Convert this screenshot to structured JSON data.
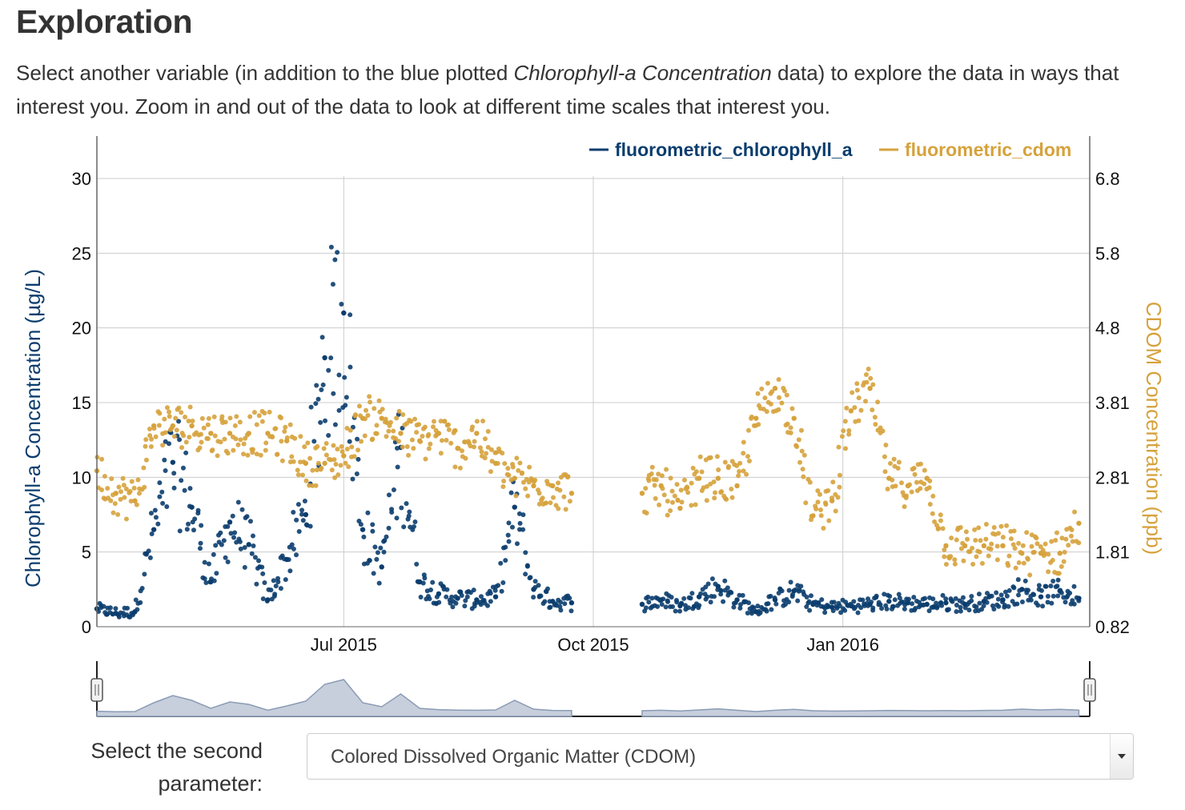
{
  "page": {
    "title": "Exploration",
    "intro_before": "Select another variable (in addition to the blue plotted ",
    "intro_emph": "Chlorophyll-a Concentration",
    "intro_after": " data) to explore the data in ways that interest you. Zoom in and out of the data to look at different time scales that interest you."
  },
  "colors": {
    "chlorophyll": "#0b3d6e",
    "cdom": "#d6a23c",
    "grid": "#cccccc",
    "navigator": "#8a9bb5"
  },
  "chart_data": {
    "type": "scatter",
    "legend_position": "top-right",
    "grid": true,
    "x_range": [
      "2015-04-01",
      "2016-04-01"
    ],
    "x_ticks": [
      "Jul 2015",
      "Oct 2015",
      "Jan 2016"
    ],
    "y_left": {
      "label": "Chlorophyll-a Concentration (µg/L)",
      "ticks": [
        "0",
        "5",
        "10",
        "15",
        "20",
        "25",
        "30"
      ],
      "range": [
        0,
        30
      ]
    },
    "y_right": {
      "label": "CDOM Concentration (ppb)",
      "ticks": [
        "0.82",
        "1.81",
        "2.81",
        "3.81",
        "4.8",
        "5.8",
        "6.8"
      ],
      "range": [
        0.82,
        6.8
      ]
    },
    "data_gap": [
      "2015-09-28",
      "2015-10-19"
    ],
    "series": [
      {
        "name": "fluorometric_chlorophyll_a",
        "axis": "left",
        "x": [
          "2015-04-01",
          "2015-04-08",
          "2015-04-15",
          "2015-04-22",
          "2015-04-29",
          "2015-05-06",
          "2015-05-13",
          "2015-05-20",
          "2015-05-27",
          "2015-06-03",
          "2015-06-10",
          "2015-06-17",
          "2015-06-24",
          "2015-07-01",
          "2015-07-08",
          "2015-07-15",
          "2015-07-22",
          "2015-07-29",
          "2015-08-05",
          "2015-08-12",
          "2015-08-19",
          "2015-08-26",
          "2015-09-02",
          "2015-09-09",
          "2015-09-16",
          "2015-09-23",
          "2015-10-19",
          "2015-10-26",
          "2015-11-02",
          "2015-11-09",
          "2015-11-16",
          "2015-11-23",
          "2015-11-30",
          "2015-12-07",
          "2015-12-14",
          "2015-12-21",
          "2015-12-28",
          "2016-01-04",
          "2016-01-11",
          "2016-01-18",
          "2016-01-25",
          "2016-02-01",
          "2016-02-08",
          "2016-02-15",
          "2016-02-22",
          "2016-02-29",
          "2016-03-07",
          "2016-03-14",
          "2016-03-21",
          "2016-03-28"
        ],
        "y": [
          1.2,
          0.9,
          1.0,
          6.5,
          11.0,
          8.0,
          3.0,
          7.0,
          5.5,
          1.8,
          4.5,
          7.5,
          18.0,
          21.0,
          6.5,
          4.0,
          12.0,
          3.0,
          2.2,
          1.9,
          1.8,
          2.0,
          8.0,
          2.5,
          1.7,
          1.6,
          1.5,
          1.8,
          1.4,
          2.0,
          2.7,
          1.8,
          1.0,
          1.8,
          2.4,
          1.5,
          1.3,
          1.4,
          1.5,
          1.7,
          1.6,
          1.5,
          1.6,
          1.5,
          1.7,
          1.8,
          2.5,
          2.0,
          2.4,
          1.9
        ]
      },
      {
        "name": "fluorometric_cdom",
        "axis": "right",
        "x": [
          "2015-04-01",
          "2015-04-08",
          "2015-04-15",
          "2015-04-22",
          "2015-04-29",
          "2015-05-06",
          "2015-05-13",
          "2015-05-20",
          "2015-05-27",
          "2015-06-03",
          "2015-06-10",
          "2015-06-17",
          "2015-06-24",
          "2015-07-01",
          "2015-07-08",
          "2015-07-15",
          "2015-07-22",
          "2015-07-29",
          "2015-08-05",
          "2015-08-12",
          "2015-08-19",
          "2015-08-26",
          "2015-09-02",
          "2015-09-09",
          "2015-09-16",
          "2015-09-23",
          "2015-10-19",
          "2015-10-26",
          "2015-11-02",
          "2015-11-09",
          "2015-11-16",
          "2015-11-23",
          "2015-11-30",
          "2015-12-07",
          "2015-12-14",
          "2015-12-21",
          "2015-12-28",
          "2016-01-04",
          "2016-01-11",
          "2016-01-18",
          "2016-01-25",
          "2016-02-01",
          "2016-02-08",
          "2016-02-15",
          "2016-02-22",
          "2016-02-29",
          "2016-03-07",
          "2016-03-14",
          "2016-03-21",
          "2016-03-28"
        ],
        "y": [
          2.9,
          2.6,
          2.5,
          3.5,
          3.5,
          3.5,
          3.4,
          3.4,
          3.4,
          3.4,
          3.3,
          3.0,
          3.0,
          3.1,
          3.6,
          3.6,
          3.4,
          3.3,
          3.4,
          3.2,
          3.4,
          3.0,
          2.8,
          2.7,
          2.7,
          2.6,
          2.6,
          2.7,
          2.4,
          2.8,
          2.8,
          2.7,
          3.6,
          4.0,
          3.6,
          2.3,
          2.5,
          3.7,
          4.0,
          2.8,
          2.7,
          2.8,
          1.9,
          1.9,
          1.9,
          1.9,
          1.8,
          1.8,
          1.8,
          2.2
        ]
      }
    ]
  },
  "navigator": {
    "start_handle": "range-start",
    "end_handle": "range-end"
  },
  "select": {
    "label": "Select the second parameter:",
    "value": "Colored Dissolved Organic Matter (CDOM)"
  }
}
